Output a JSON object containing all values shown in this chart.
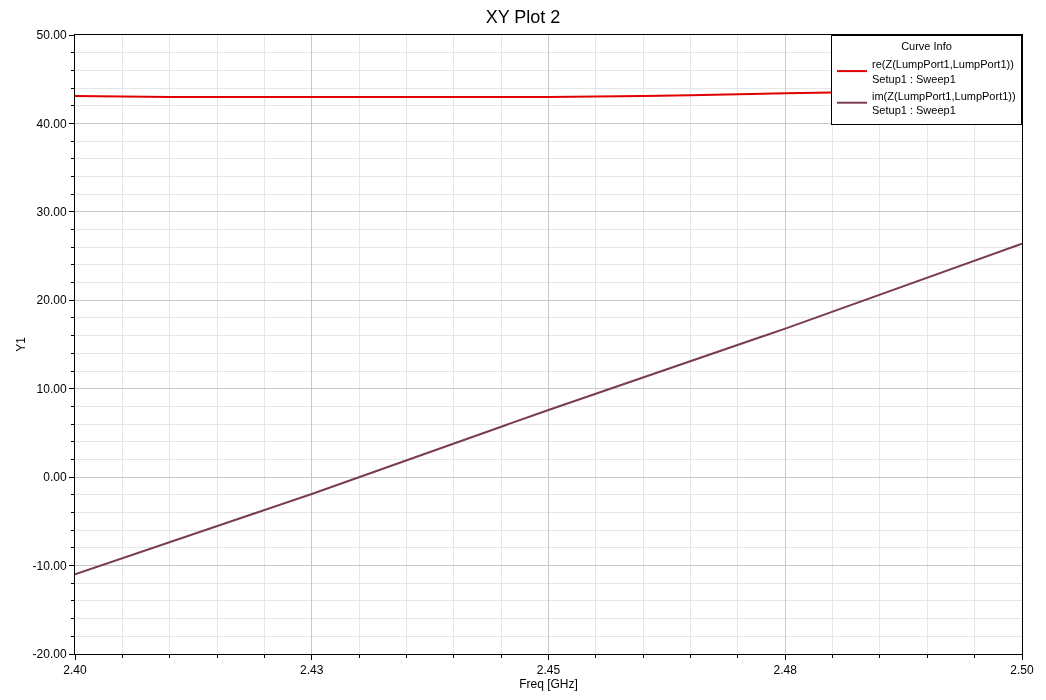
{
  "chart_data": {
    "type": "line",
    "title": "XY Plot 2",
    "xlabel": "Freq [GHz]",
    "ylabel": "Y1",
    "legend_title": "Curve Info",
    "legend": "top right",
    "grid": true,
    "line_style": "solid",
    "marker": "none",
    "xlim": [
      2.4,
      2.5
    ],
    "xticks": [
      {
        "value": 2.4,
        "label": "2.40"
      },
      {
        "value": 2.425,
        "label": "2.43"
      },
      {
        "value": 2.45,
        "label": "2.45"
      },
      {
        "value": 2.475,
        "label": "2.48"
      },
      {
        "value": 2.5,
        "label": "2.50"
      }
    ],
    "ylim": [
      -20,
      50
    ],
    "yticks": [
      {
        "value": -20,
        "label": "-20.00"
      },
      {
        "value": -10,
        "label": "-10.00"
      },
      {
        "value": 0,
        "label": "0.00"
      },
      {
        "value": 10,
        "label": "10.00"
      },
      {
        "value": 20,
        "label": "20.00"
      },
      {
        "value": 30,
        "label": "30.00"
      },
      {
        "value": 40,
        "label": "40.00"
      },
      {
        "value": 50,
        "label": "50.00"
      }
    ],
    "series": [
      {
        "name": "re(Z(LumpPort1,LumpPort1))\nSetup1 : Sweep1",
        "color": "#e00000",
        "x": [
          2.4,
          2.41,
          2.45,
          2.46,
          2.465,
          2.47,
          2.475,
          2.48
        ],
        "values": [
          43.1,
          43.0,
          43.0,
          43.1,
          43.2,
          43.3,
          43.4,
          43.5
        ]
      },
      {
        "name": "im(Z(LumpPort1,LumpPort1))\nSetup1 : Sweep1",
        "color": "#7a3b55",
        "x": [
          2.4,
          2.425,
          2.45,
          2.475,
          2.5
        ],
        "values": [
          -11.0,
          -1.9,
          7.6,
          16.8,
          26.4
        ]
      }
    ]
  }
}
